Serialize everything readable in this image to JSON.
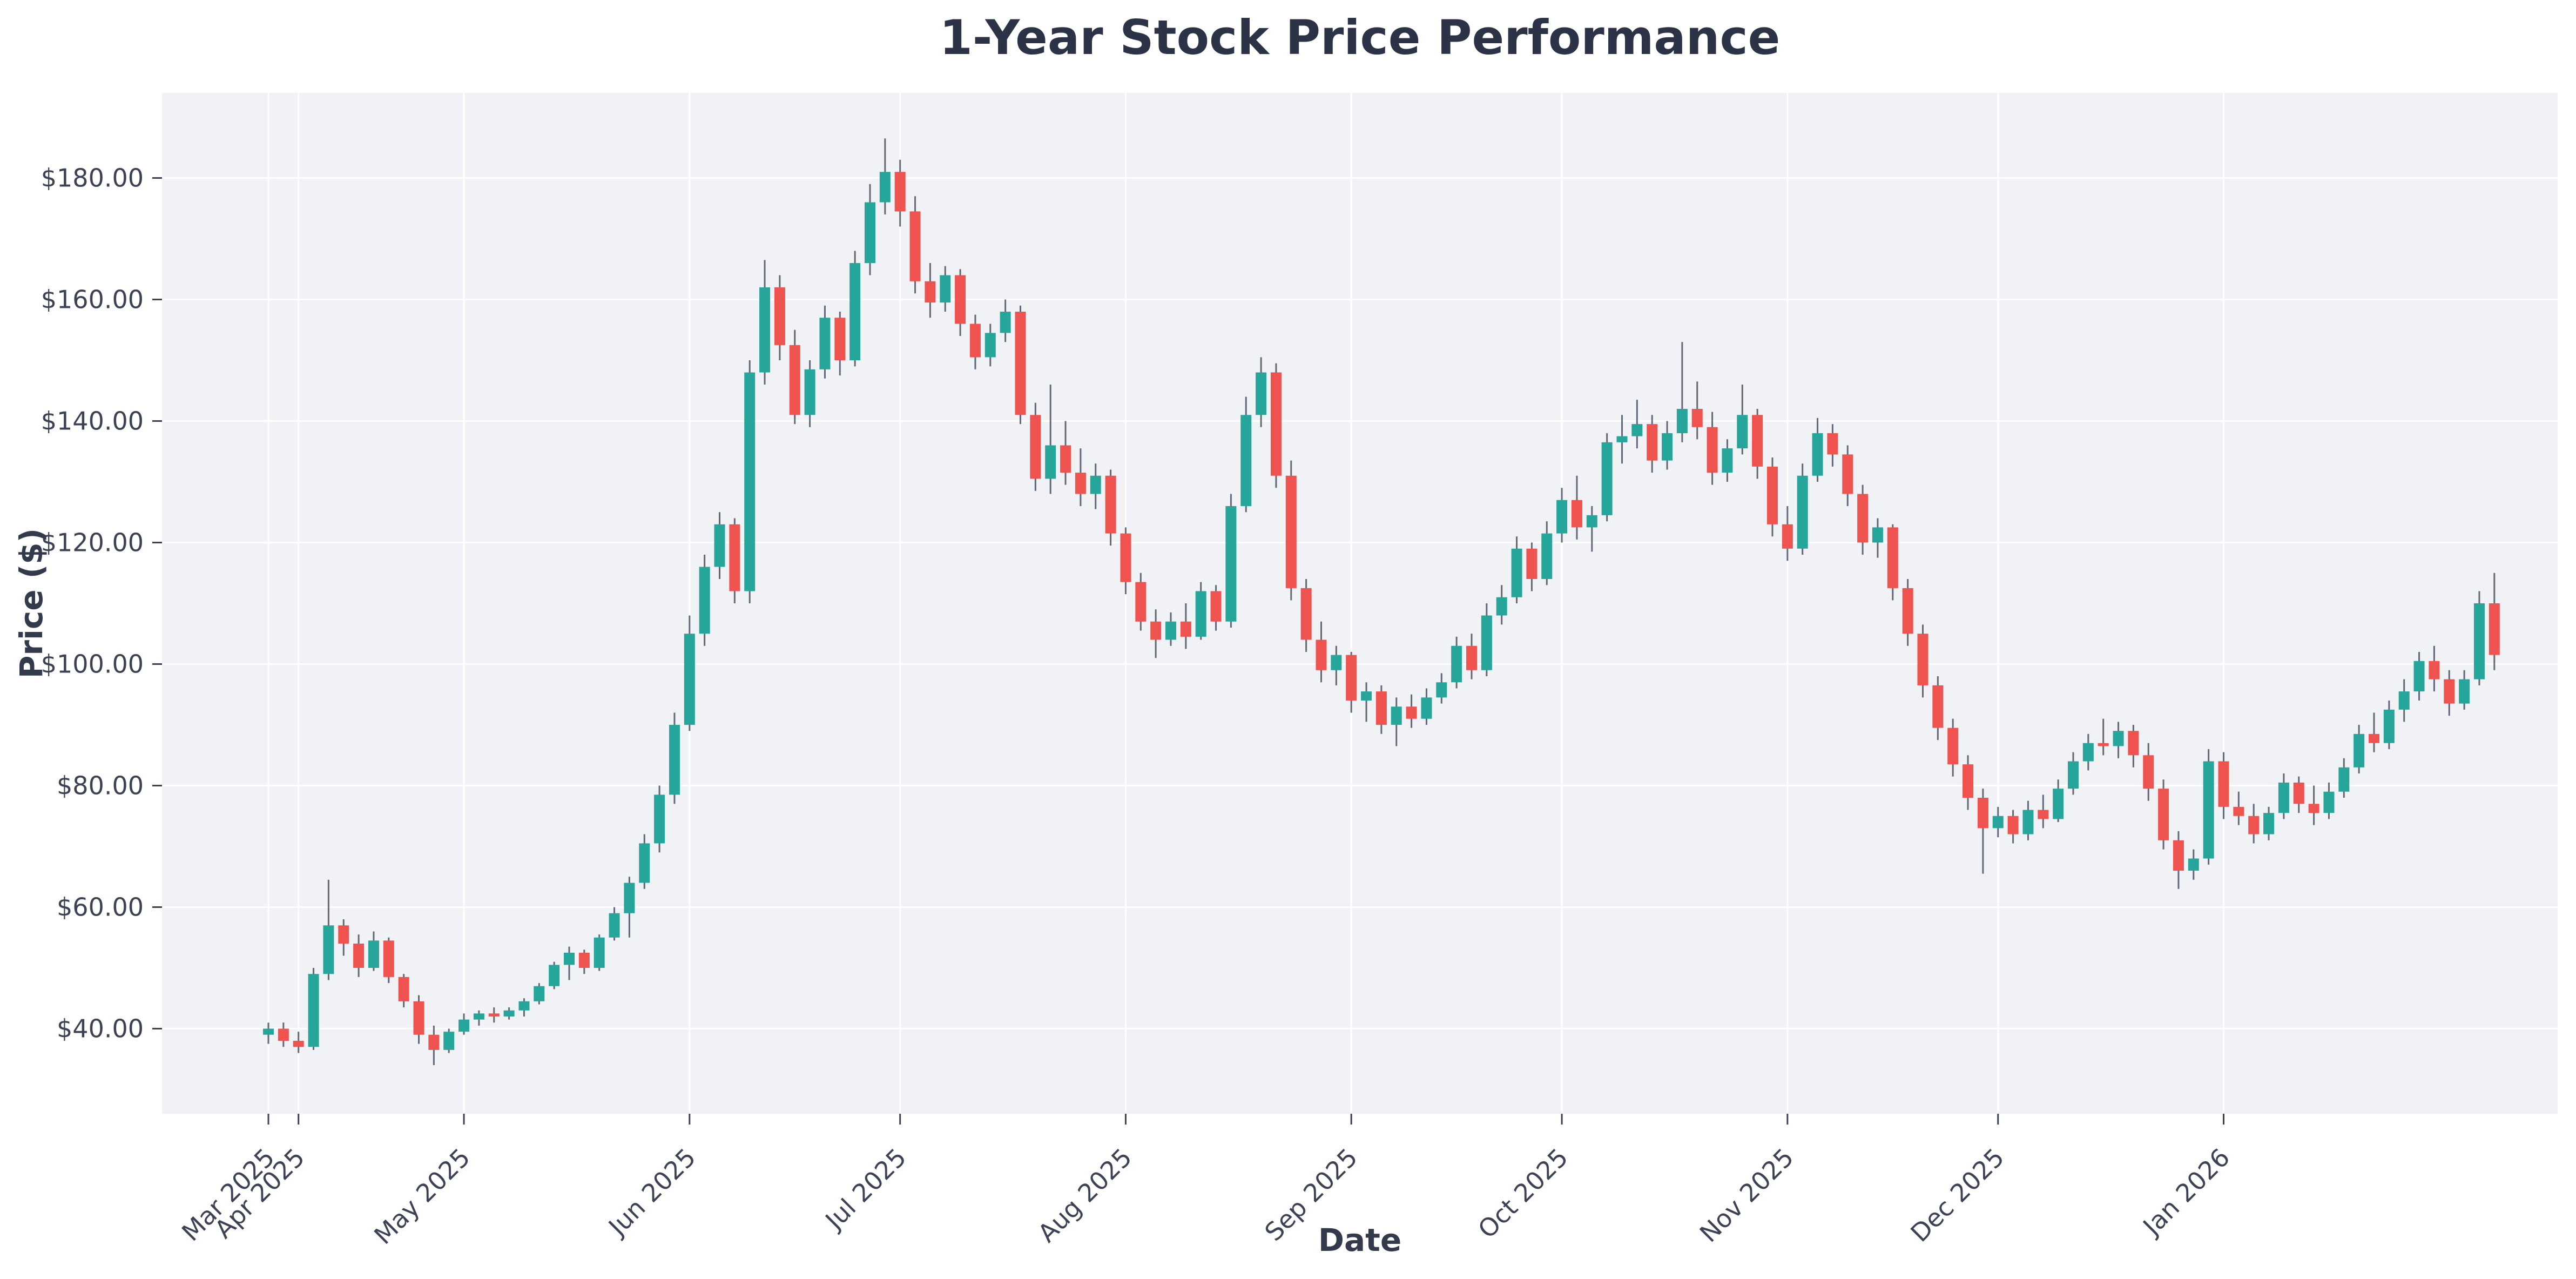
{
  "chart_data": {
    "type": "candlestick",
    "title": "1-Year Stock Price Performance",
    "xlabel": "Date",
    "ylabel": "Price ($)",
    "ylim": [
      26,
      194
    ],
    "grid": true,
    "legend": "none",
    "colors": {
      "up": "#26a69a",
      "down": "#ef5350",
      "wick": "#4a5160",
      "plot_background": "#f1f2f6",
      "grid": "#ffffff",
      "tick_label": "#3c4254",
      "title": "#2c3347"
    },
    "y_ticks": [
      {
        "value": 40,
        "label": "$40.00"
      },
      {
        "value": 60,
        "label": "$60.00"
      },
      {
        "value": 80,
        "label": "$80.00"
      },
      {
        "value": 100,
        "label": "$100.00"
      },
      {
        "value": 120,
        "label": "$120.00"
      },
      {
        "value": 140,
        "label": "$140.00"
      },
      {
        "value": 160,
        "label": "$160.00"
      },
      {
        "value": 180,
        "label": "$180.00"
      }
    ],
    "x_ticks": [
      {
        "index": 0,
        "label": "Mar 2025"
      },
      {
        "index": 2,
        "label": "Apr 2025"
      },
      {
        "index": 13,
        "label": "May 2025"
      },
      {
        "index": 28,
        "label": "Jun 2025"
      },
      {
        "index": 42,
        "label": "Jul 2025"
      },
      {
        "index": 57,
        "label": "Aug 2025"
      },
      {
        "index": 72,
        "label": "Sep 2025"
      },
      {
        "index": 86,
        "label": "Oct 2025"
      },
      {
        "index": 101,
        "label": "Nov 2025"
      },
      {
        "index": 115,
        "label": "Dec 2025"
      },
      {
        "index": 130,
        "label": "Jan 2026"
      }
    ],
    "candles_format": [
      "open",
      "high",
      "low",
      "close"
    ],
    "candles": [
      [
        39,
        41,
        37.5,
        40
      ],
      [
        40,
        41,
        37,
        38
      ],
      [
        38,
        39.5,
        36,
        37
      ],
      [
        37,
        50,
        36.5,
        49
      ],
      [
        49,
        64.5,
        48,
        57
      ],
      [
        57,
        58,
        52,
        54
      ],
      [
        54,
        55.5,
        48.5,
        50
      ],
      [
        50,
        56,
        49.5,
        54.5
      ],
      [
        54.5,
        55,
        47.5,
        48.5
      ],
      [
        48.5,
        49,
        43.5,
        44.5
      ],
      [
        44.5,
        45.5,
        37.5,
        39
      ],
      [
        39,
        40.5,
        34,
        36.5
      ],
      [
        36.5,
        40,
        36,
        39.5
      ],
      [
        39.5,
        42.5,
        39,
        41.5
      ],
      [
        41.5,
        43,
        40.5,
        42.5
      ],
      [
        42.5,
        43.5,
        41,
        42
      ],
      [
        42,
        43.5,
        41.5,
        43
      ],
      [
        43,
        45,
        42,
        44.5
      ],
      [
        44.5,
        47.5,
        44,
        47
      ],
      [
        47,
        51,
        46.5,
        50.5
      ],
      [
        50.5,
        53.5,
        48,
        52.5
      ],
      [
        52.5,
        53,
        49,
        50
      ],
      [
        50,
        55.5,
        49.5,
        55
      ],
      [
        55,
        60,
        54.5,
        59
      ],
      [
        59,
        65,
        55,
        64
      ],
      [
        64,
        72,
        63,
        70.5
      ],
      [
        70.5,
        80,
        69,
        78.5
      ],
      [
        78.5,
        92,
        77,
        90
      ],
      [
        90,
        108,
        89,
        105
      ],
      [
        105,
        118,
        103,
        116
      ],
      [
        116,
        125,
        114,
        123
      ],
      [
        123,
        124,
        110,
        112
      ],
      [
        112,
        150,
        110,
        148
      ],
      [
        148,
        166.5,
        146,
        162
      ],
      [
        162,
        164,
        150,
        152.5
      ],
      [
        152.5,
        155,
        139.5,
        141
      ],
      [
        141,
        150,
        139,
        148.5
      ],
      [
        148.5,
        159,
        147,
        157
      ],
      [
        157,
        158,
        147.5,
        150
      ],
      [
        150,
        168,
        149,
        166
      ],
      [
        166,
        179,
        164,
        176
      ],
      [
        176,
        186.5,
        174,
        181
      ],
      [
        181,
        183,
        172,
        174.5
      ],
      [
        174.5,
        177,
        161,
        163
      ],
      [
        163,
        166,
        157,
        159.5
      ],
      [
        159.5,
        165.5,
        158,
        164
      ],
      [
        164,
        165,
        154,
        156
      ],
      [
        156,
        157.5,
        148.5,
        150.5
      ],
      [
        150.5,
        156,
        149,
        154.5
      ],
      [
        154.5,
        160,
        153,
        158
      ],
      [
        158,
        159,
        139.5,
        141
      ],
      [
        141,
        143,
        128.5,
        130.5
      ],
      [
        130.5,
        146,
        128,
        136
      ],
      [
        136,
        140,
        129.5,
        131.5
      ],
      [
        131.5,
        135.5,
        126,
        128
      ],
      [
        128,
        133,
        125.5,
        131
      ],
      [
        131,
        132,
        119.5,
        121.5
      ],
      [
        121.5,
        122.5,
        111.5,
        113.5
      ],
      [
        113.5,
        115,
        105.5,
        107
      ],
      [
        107,
        109,
        101,
        104
      ],
      [
        104,
        108.5,
        103,
        107
      ],
      [
        107,
        110,
        102.5,
        104.5
      ],
      [
        104.5,
        113.5,
        104,
        112
      ],
      [
        112,
        113,
        105.5,
        107
      ],
      [
        107,
        128,
        106,
        126
      ],
      [
        126,
        144,
        125,
        141
      ],
      [
        141,
        150.5,
        139,
        148
      ],
      [
        148,
        149.5,
        129,
        131
      ],
      [
        131,
        133.5,
        110.5,
        112.5
      ],
      [
        112.5,
        114,
        102,
        104
      ],
      [
        104,
        107,
        97,
        99
      ],
      [
        99,
        103,
        96.5,
        101.5
      ],
      [
        101.5,
        102,
        92,
        94
      ],
      [
        94,
        97,
        90.5,
        95.5
      ],
      [
        95.5,
        96.5,
        88.5,
        90
      ],
      [
        90,
        94.5,
        86.5,
        93
      ],
      [
        93,
        95,
        89.5,
        91
      ],
      [
        91,
        96,
        90,
        94.5
      ],
      [
        94.5,
        98.5,
        93.5,
        97
      ],
      [
        97,
        104.5,
        96,
        103
      ],
      [
        103,
        105,
        97.5,
        99
      ],
      [
        99,
        110,
        98,
        108
      ],
      [
        108,
        113,
        106.5,
        111
      ],
      [
        111,
        121,
        110,
        119
      ],
      [
        119,
        120,
        112,
        114
      ],
      [
        114,
        123.5,
        113,
        121.5
      ],
      [
        121.5,
        129,
        120,
        127
      ],
      [
        127,
        131,
        120.5,
        122.5
      ],
      [
        122.5,
        126,
        118.5,
        124.5
      ],
      [
        124.5,
        138,
        123.5,
        136.5
      ],
      [
        136.5,
        141,
        133,
        137.5
      ],
      [
        137.5,
        143.5,
        135.5,
        139.5
      ],
      [
        139.5,
        141,
        131.5,
        133.5
      ],
      [
        133.5,
        140,
        132,
        138
      ],
      [
        138,
        153,
        136.5,
        142
      ],
      [
        142,
        146.5,
        137,
        139
      ],
      [
        139,
        141.5,
        129.5,
        131.5
      ],
      [
        131.5,
        137,
        130,
        135.5
      ],
      [
        135.5,
        146,
        134.5,
        141
      ],
      [
        141,
        142,
        130.5,
        132.5
      ],
      [
        132.5,
        134,
        121,
        123
      ],
      [
        123,
        126,
        117,
        119
      ],
      [
        119,
        133,
        118,
        131
      ],
      [
        131,
        140.5,
        130,
        138
      ],
      [
        138,
        139.5,
        132.5,
        134.5
      ],
      [
        134.5,
        136,
        126,
        128
      ],
      [
        128,
        129.5,
        118,
        120
      ],
      [
        120,
        124,
        117.5,
        122.5
      ],
      [
        122.5,
        123,
        110.5,
        112.5
      ],
      [
        112.5,
        114,
        103,
        105
      ],
      [
        105,
        106.5,
        94.5,
        96.5
      ],
      [
        96.5,
        98,
        87.5,
        89.5
      ],
      [
        89.5,
        91,
        81.5,
        83.5
      ],
      [
        83.5,
        85,
        76,
        78
      ],
      [
        78,
        79.5,
        65.5,
        73
      ],
      [
        73,
        76.5,
        71.5,
        75
      ],
      [
        75,
        76,
        70.5,
        72
      ],
      [
        72,
        77.5,
        71,
        76
      ],
      [
        76,
        78.5,
        73,
        74.5
      ],
      [
        74.5,
        81,
        74,
        79.5
      ],
      [
        79.5,
        85.5,
        78.5,
        84
      ],
      [
        84,
        88.5,
        82.5,
        87
      ],
      [
        87,
        91,
        85,
        86.5
      ],
      [
        86.5,
        90.5,
        84.5,
        89
      ],
      [
        89,
        90,
        83,
        85
      ],
      [
        85,
        87,
        77.5,
        79.5
      ],
      [
        79.5,
        81,
        69.5,
        71
      ],
      [
        71,
        72.5,
        63,
        66
      ],
      [
        66,
        69.5,
        64.5,
        68
      ],
      [
        68,
        86,
        67,
        84
      ],
      [
        84,
        85.5,
        74.5,
        76.5
      ],
      [
        76.5,
        79,
        73.5,
        75
      ],
      [
        75,
        77,
        70.5,
        72
      ],
      [
        72,
        76.5,
        71,
        75.5
      ],
      [
        75.5,
        82,
        74.5,
        80.5
      ],
      [
        80.5,
        81.5,
        75.5,
        77
      ],
      [
        77,
        80,
        73.5,
        75.5
      ],
      [
        75.5,
        80.5,
        74.5,
        79
      ],
      [
        79,
        84.5,
        78,
        83
      ],
      [
        83,
        90,
        82,
        88.5
      ],
      [
        88.5,
        92,
        85.5,
        87
      ],
      [
        87,
        94,
        86,
        92.5
      ],
      [
        92.5,
        97.5,
        90.5,
        95.5
      ],
      [
        95.5,
        102,
        94,
        100.5
      ],
      [
        100.5,
        103,
        95.5,
        97.5
      ],
      [
        97.5,
        99,
        91.5,
        93.5
      ],
      [
        93.5,
        99,
        92.5,
        97.5
      ],
      [
        97.5,
        112,
        96.5,
        110
      ],
      [
        110,
        115,
        99,
        101.5
      ]
    ]
  }
}
